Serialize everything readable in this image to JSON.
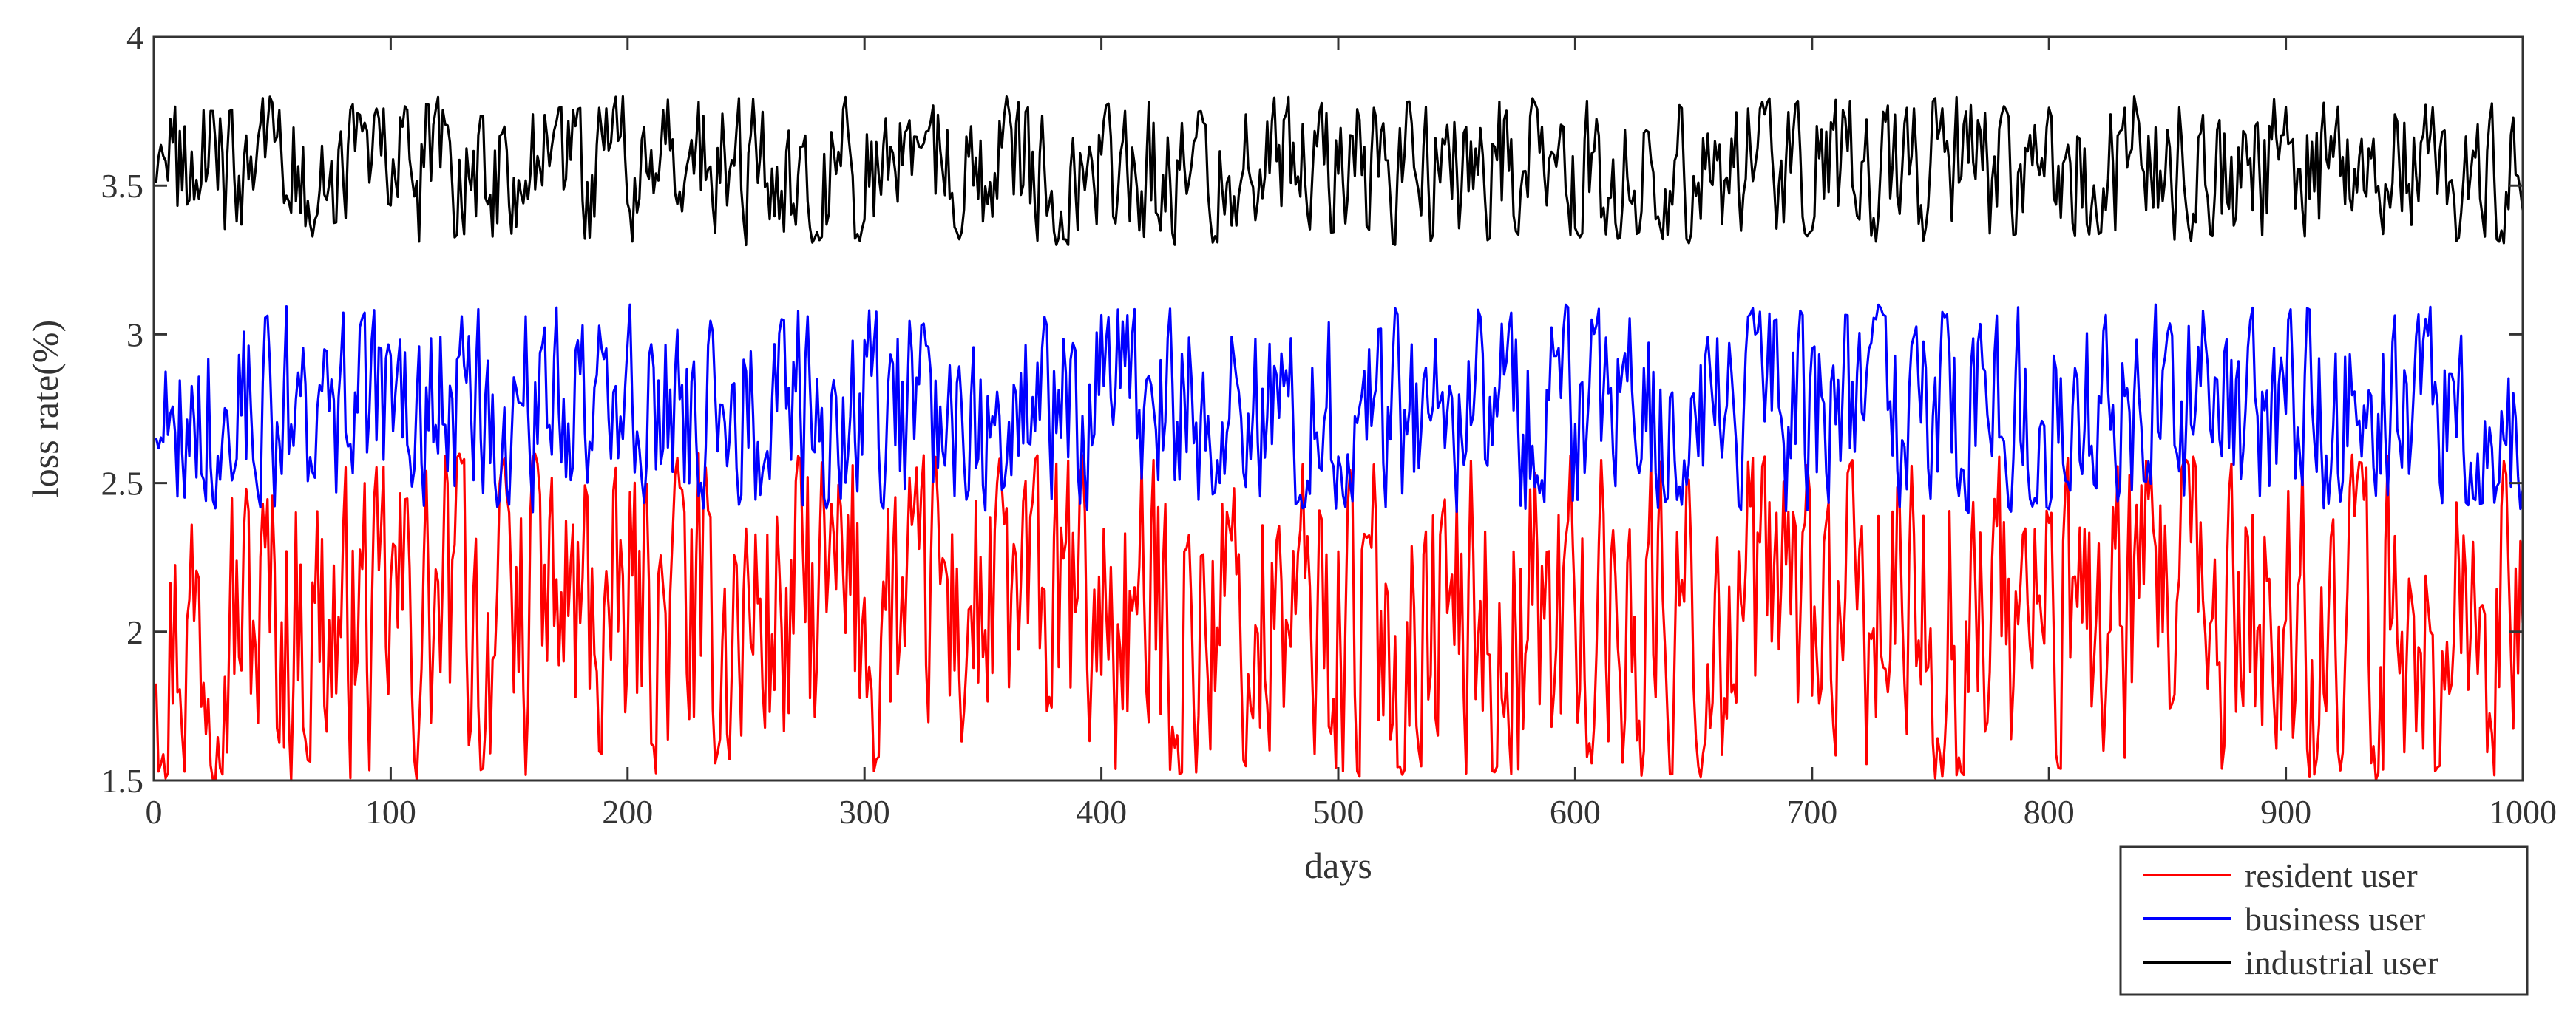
{
  "chart_data": {
    "type": "line",
    "title": "",
    "xlabel": "days",
    "ylabel": "loss rate(%)",
    "xlim": [
      0,
      1000
    ],
    "ylim": [
      1.5,
      4
    ],
    "xticks": [
      0,
      100,
      200,
      300,
      400,
      500,
      600,
      700,
      800,
      900,
      1000
    ],
    "yticks": [
      1.5,
      2,
      2.5,
      3,
      3.5,
      4
    ],
    "xtick_labels": [
      "0",
      "100",
      "200",
      "300",
      "400",
      "500",
      "600",
      "700",
      "800",
      "900",
      "1000"
    ],
    "ytick_labels": [
      "1.5",
      "2",
      "2.5",
      "3",
      "3.5",
      "4"
    ],
    "grid": false,
    "legend_position": "bottom-right, outside plot",
    "x": {
      "start": 1,
      "end": 1000,
      "step": 1
    },
    "series": [
      {
        "name": "resident user",
        "color": "#ff0000",
        "min": 1.5,
        "max": 2.6,
        "mean": 2.05,
        "noise": "random daily fluctuation"
      },
      {
        "name": "business user",
        "color": "#0000ff",
        "min": 2.4,
        "max": 3.1,
        "mean": 2.75,
        "noise": "random daily fluctuation"
      },
      {
        "name": "industrial user",
        "color": "#000000",
        "min": 3.3,
        "max": 3.8,
        "mean": 3.55,
        "noise": "random daily fluctuation"
      }
    ]
  }
}
